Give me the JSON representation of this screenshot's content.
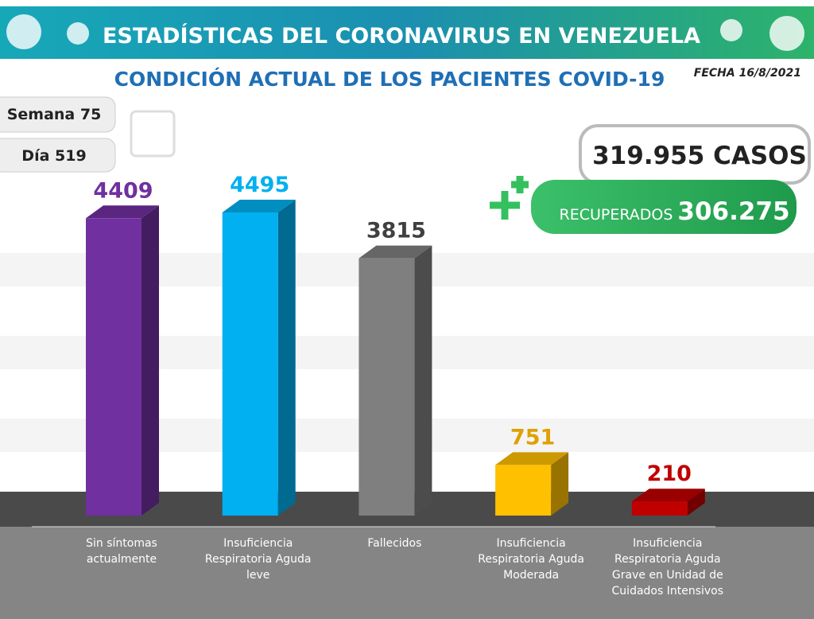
{
  "header_title": "ESTADÍSTICAS DEL CORONAVIRUS EN VENEZUELA",
  "date": "FECHA 16/8/2021",
  "week": "Semana 75",
  "day": "Día 519",
  "cases": "319.955 CASOS",
  "recovered_label": "RECUPERADOS",
  "recovered_value": "306.275",
  "chart_data": {
    "type": "bar3d",
    "title": "CONDICIÓN ACTUAL DE LOS PACIENTES COVID-19",
    "categories": [
      "Sin síntomas actualmente",
      "Insuficiencia Respiratoria Aguda leve",
      "Fallecidos",
      "Insuficiencia Respiratoria Aguda Moderada",
      "Insuficiencia Respiratoria Aguda Grave en Unidad de Cuidados Intensivos"
    ],
    "values": [
      4409,
      4495,
      3815,
      751,
      210
    ],
    "colors": [
      "#7030a0",
      "#00b0f0",
      "#7f7f7f",
      "#ffc000",
      "#c00000"
    ],
    "label_colors": [
      "#7030a0",
      "#00b0f0",
      "#404040",
      "#e0a000",
      "#c00000"
    ]
  }
}
